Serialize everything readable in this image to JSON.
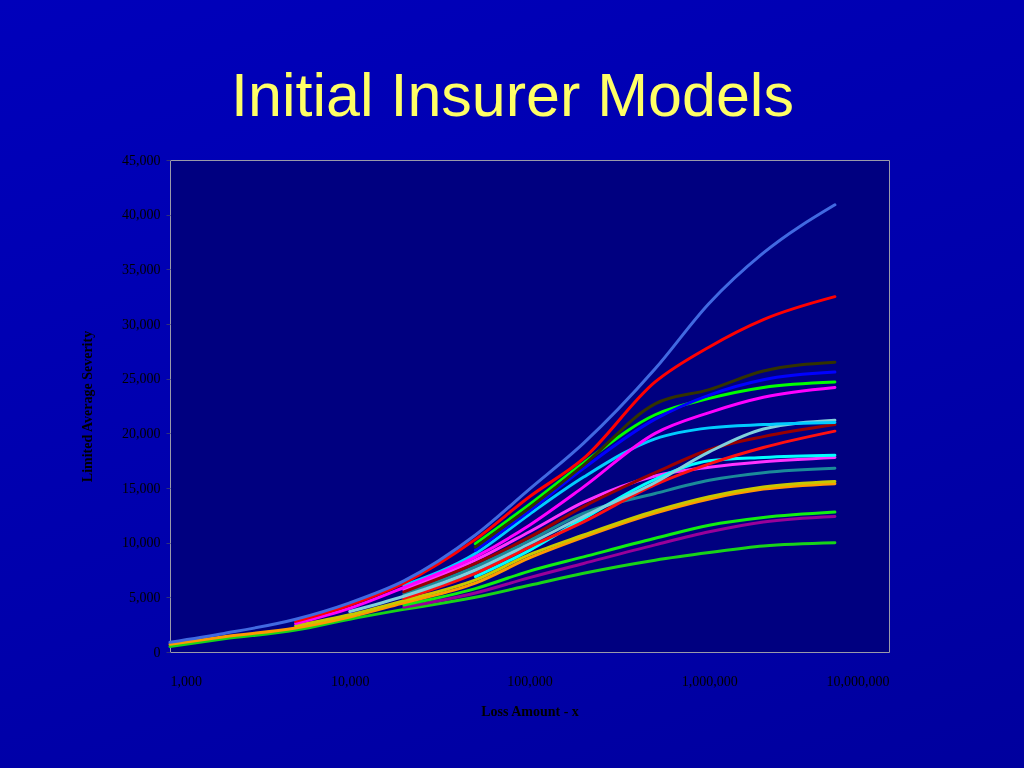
{
  "chart_data": {
    "type": "line",
    "title": "Initial Insurer Models",
    "xlabel": "Loss Amount - x",
    "ylabel": "Limited Average Severity",
    "log": "x",
    "xlim": [
      1000,
      10000000
    ],
    "xticks": [
      {
        "value": 1000,
        "label": "1,000"
      },
      {
        "value": 10000,
        "label": "10,000"
      },
      {
        "value": 100000,
        "label": "100,000"
      },
      {
        "value": 1000000,
        "label": "1,000,000"
      },
      {
        "value": 10000000,
        "label": "10,000,000"
      }
    ],
    "ylim": [
      0,
      45000
    ],
    "yticks": [
      0,
      {
        "value": 5000,
        "label": "5,000"
      },
      {
        "value": 10000,
        "label": "10,000"
      },
      {
        "value": 15000,
        "label": "15,000"
      },
      {
        "value": 20000,
        "label": "20,000"
      },
      {
        "value": 25000,
        "label": "25,000"
      },
      {
        "value": 30000,
        "label": "30,000"
      },
      {
        "value": 35000,
        "label": "35,000"
      },
      {
        "value": 40000,
        "label": "40,000"
      },
      {
        "value": 45000,
        "label": "45,000"
      }
    ],
    "x": [
      1000,
      2000,
      5000,
      10000,
      20000,
      50000,
      100000,
      200000,
      500000,
      1000000,
      2000000,
      5000000
    ],
    "series": [
      {
        "color": "#18d418",
        "values": [
          500,
          1200,
          2000,
          3000,
          3900,
          5000,
          6100,
          7200,
          8400,
          9100,
          9700,
          10000
        ]
      },
      {
        "color": "#990099",
        "values": [
          null,
          null,
          null,
          null,
          4100,
          5400,
          6800,
          8100,
          9800,
          11000,
          11900,
          12400
        ]
      },
      {
        "color": "#11ee11",
        "values": [
          null,
          null,
          null,
          null,
          4300,
          5800,
          7400,
          8700,
          10400,
          11600,
          12300,
          12800
        ]
      },
      {
        "color": "#ff9900",
        "values": [
          700,
          1400,
          2200,
          3200,
          4500,
          6300,
          8600,
          10500,
          12700,
          14000,
          14900,
          15400
        ]
      },
      {
        "color": "#c8c800",
        "values": [
          null,
          null,
          2400,
          3400,
          4700,
          6600,
          8900,
          10700,
          12900,
          14200,
          15100,
          15600
        ]
      },
      {
        "color": "#1a8a99",
        "values": [
          null,
          null,
          null,
          null,
          5300,
          7800,
          10200,
          12700,
          14500,
          15700,
          16400,
          16800
        ]
      },
      {
        "color": "#ff33ff",
        "values": [
          null,
          null,
          null,
          null,
          5700,
          8400,
          11000,
          13700,
          16100,
          16900,
          17400,
          17800
        ]
      },
      {
        "color": "#00ffff",
        "values": [
          null,
          null,
          null,
          null,
          null,
          6900,
          9300,
          12200,
          15800,
          17500,
          17800,
          18000
        ]
      },
      {
        "color": "#ff1010",
        "values": [
          null,
          null,
          null,
          null,
          4900,
          7200,
          9600,
          11900,
          15300,
          17200,
          18700,
          20200
        ]
      },
      {
        "color": "#990000",
        "values": [
          null,
          null,
          null,
          null,
          5500,
          8100,
          10500,
          13300,
          16400,
          18500,
          19700,
          20800
        ]
      },
      {
        "color": "#80d0dc",
        "values": [
          null,
          null,
          null,
          3700,
          5100,
          7500,
          9900,
          12400,
          15500,
          18300,
          20400,
          21200
        ]
      },
      {
        "color": "#00ccff",
        "values": [
          null,
          null,
          null,
          null,
          6100,
          9000,
          12600,
          16000,
          19500,
          20500,
          20800,
          21000
        ]
      },
      {
        "color": "#ff00ff",
        "values": [
          null,
          null,
          2600,
          4000,
          5900,
          8700,
          11600,
          15100,
          20000,
          21900,
          23300,
          24200
        ]
      },
      {
        "color": "#00ff00",
        "values": [
          null,
          null,
          null,
          null,
          null,
          9900,
          13500,
          17300,
          21700,
          23200,
          24200,
          24700
        ]
      },
      {
        "color": "#0000ff",
        "values": [
          null,
          null,
          null,
          null,
          null,
          9300,
          12900,
          16800,
          21300,
          23500,
          24900,
          25600
        ]
      },
      {
        "color": "#333300",
        "values": [
          null,
          null,
          null,
          null,
          null,
          9600,
          13200,
          17100,
          22700,
          24000,
          25700,
          26500
        ]
      },
      {
        "color": "#ff0000",
        "values": [
          null,
          null,
          2800,
          4300,
          6300,
          10300,
          14200,
          17700,
          24700,
          27900,
          30400,
          32500
        ]
      },
      {
        "color": "#4169e1",
        "values": [
          900,
          1700,
          3000,
          4500,
          6500,
          10700,
          14900,
          19100,
          25900,
          31900,
          36500,
          40900
        ]
      }
    ]
  }
}
